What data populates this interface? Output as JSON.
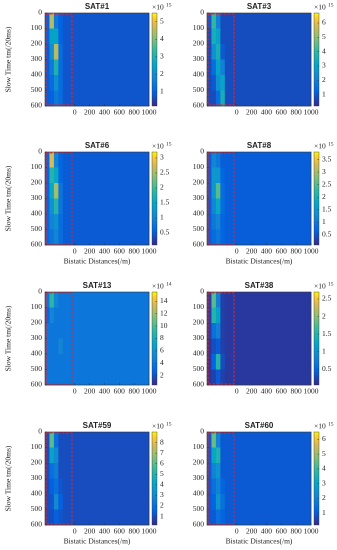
{
  "chart_data": [
    {
      "type": "heatmap",
      "title": "SAT#1",
      "ylabel": "Slow Time tm(/20ms)",
      "x_edges": [
        -400,
        -340,
        -280,
        -220,
        -160,
        1000
      ],
      "y_edges": [
        0,
        100,
        200,
        300,
        400,
        500,
        600
      ],
      "z": [
        [
          1,
          4.5,
          1.5,
          1,
          0.8
        ],
        [
          1,
          2.5,
          2.5,
          1,
          0.8
        ],
        [
          0.9,
          2,
          4.5,
          1.2,
          0.8
        ],
        [
          0.9,
          1.5,
          3,
          1.2,
          0.8
        ],
        [
          0.9,
          1.2,
          2,
          1.2,
          0.8
        ],
        [
          0.9,
          1,
          1.5,
          1.2,
          0.8
        ]
      ],
      "xlim": [
        -400,
        1000
      ],
      "ylim": [
        0,
        600
      ],
      "xticks": [
        0,
        200,
        400,
        600,
        800,
        1000
      ],
      "yticks": [
        0,
        100,
        200,
        300,
        400,
        500,
        600
      ],
      "clim": [
        0.2,
        5.5
      ],
      "cticks": [
        1,
        2,
        3,
        4,
        5
      ],
      "cexponent": {
        "base": "×10",
        "power": "15"
      }
    },
    {
      "type": "heatmap",
      "title": "SAT#3",
      "x_edges": [
        -400,
        -340,
        -280,
        -220,
        -160,
        1000
      ],
      "y_edges": [
        0,
        100,
        200,
        300,
        400,
        500,
        600
      ],
      "z": [
        [
          1,
          4,
          2,
          0.8,
          0.8
        ],
        [
          0.8,
          3.5,
          3,
          0.8,
          0.8
        ],
        [
          0.8,
          2.5,
          3.5,
          1,
          0.8
        ],
        [
          0.8,
          1.5,
          3,
          2,
          0.8
        ],
        [
          0.8,
          1,
          2.5,
          3,
          0.8
        ],
        [
          0.8,
          0.8,
          1.5,
          3.5,
          0.8
        ]
      ],
      "xlim": [
        -400,
        1000
      ],
      "ylim": [
        0,
        600
      ],
      "xticks": [
        0,
        200,
        400,
        600,
        800,
        1000
      ],
      "yticks": [
        0,
        100,
        200,
        300,
        400,
        500,
        600
      ],
      "clim": [
        0.2,
        6.7
      ],
      "cticks": [
        1,
        2,
        3,
        4,
        5,
        6
      ],
      "cexponent": {
        "base": "×10",
        "power": "15"
      }
    },
    {
      "type": "heatmap",
      "title": "SAT#6",
      "ylabel": "Slow Time tm(/20ms)",
      "xlabel": "Bistatic Distances(/m)",
      "x_edges": [
        -400,
        -340,
        -280,
        -220,
        -160,
        1000
      ],
      "y_edges": [
        0,
        100,
        200,
        300,
        400,
        500,
        600
      ],
      "z": [
        [
          0.6,
          2.8,
          1,
          0.6,
          0.5
        ],
        [
          0.6,
          1.8,
          1.5,
          0.6,
          0.5
        ],
        [
          0.6,
          1.5,
          2.5,
          0.8,
          0.5
        ],
        [
          0.6,
          1.2,
          1.8,
          0.8,
          0.5
        ],
        [
          0.6,
          1,
          1.2,
          0.7,
          0.5
        ],
        [
          0.6,
          0.8,
          1,
          0.7,
          0.5
        ]
      ],
      "xlim": [
        -400,
        1000
      ],
      "ylim": [
        0,
        600
      ],
      "xticks": [
        0,
        200,
        400,
        600,
        800,
        1000
      ],
      "yticks": [
        0,
        100,
        200,
        300,
        400,
        500,
        600
      ],
      "clim": [
        0.1,
        3.2
      ],
      "cticks": [
        0.5,
        1,
        1.5,
        2,
        2.5,
        3
      ],
      "cexponent": {
        "base": "×10",
        "power": "15"
      }
    },
    {
      "type": "heatmap",
      "title": "SAT#8",
      "xlabel": "Bistatic Distances(/m)",
      "x_edges": [
        -400,
        -340,
        -280,
        -220,
        -160,
        1000
      ],
      "y_edges": [
        0,
        100,
        200,
        300,
        400,
        500,
        600
      ],
      "z": [
        [
          0.6,
          1.2,
          1,
          0.6,
          0.6
        ],
        [
          0.6,
          1.5,
          1.5,
          0.7,
          0.6
        ],
        [
          0.6,
          1.5,
          2.5,
          0.8,
          0.6
        ],
        [
          0.6,
          1.2,
          1.8,
          0.8,
          0.6
        ],
        [
          0.6,
          1,
          1.2,
          0.7,
          0.6
        ],
        [
          0.6,
          0.8,
          1,
          0.7,
          0.6
        ]
      ],
      "xlim": [
        -400,
        1000
      ],
      "ylim": [
        0,
        600
      ],
      "xticks": [
        0,
        200,
        400,
        600,
        800,
        1000
      ],
      "yticks": [
        0,
        100,
        200,
        300,
        400,
        500,
        600
      ],
      "clim": [
        0.1,
        3.8
      ],
      "cticks": [
        0.5,
        1,
        1.5,
        2,
        2.5,
        3,
        3.5
      ],
      "cexponent": {
        "base": "×10",
        "power": "15"
      }
    },
    {
      "type": "heatmap",
      "title": "SAT#13",
      "ylabel": "Slow Time tm(/20ms)",
      "x_edges": [
        -400,
        -340,
        -280,
        -220,
        -160,
        1000
      ],
      "y_edges": [
        0,
        100,
        200,
        300,
        400,
        500,
        600
      ],
      "z": [
        [
          4,
          9,
          5,
          4,
          4
        ],
        [
          3,
          5,
          4,
          4,
          4
        ],
        [
          4,
          4,
          4,
          4,
          4
        ],
        [
          4,
          4,
          4,
          5,
          4
        ],
        [
          4,
          4,
          4,
          4,
          4
        ],
        [
          4,
          4,
          4,
          4,
          4
        ]
      ],
      "xlim": [
        -400,
        1000
      ],
      "ylim": [
        0,
        600
      ],
      "xticks": [
        0,
        200,
        400,
        600,
        800,
        1000
      ],
      "yticks": [
        0,
        100,
        200,
        300,
        400,
        500,
        600
      ],
      "clim": [
        0.5,
        15.5
      ],
      "cticks": [
        2,
        4,
        6,
        8,
        10,
        12,
        14
      ],
      "cexponent": {
        "base": "×10",
        "power": "14"
      }
    },
    {
      "type": "heatmap",
      "title": "SAT#38",
      "x_edges": [
        -400,
        -340,
        -280,
        -220,
        -160,
        1000
      ],
      "y_edges": [
        0,
        100,
        200,
        300,
        400,
        500,
        600
      ],
      "z": [
        [
          0.2,
          1.8,
          0.8,
          0.2,
          0.15
        ],
        [
          0.2,
          1.5,
          1.2,
          0.2,
          0.15
        ],
        [
          0.2,
          0.6,
          0.8,
          0.2,
          0.15
        ],
        [
          0.15,
          0.3,
          0.4,
          0.2,
          0.15
        ],
        [
          0.15,
          0.5,
          1.5,
          0.3,
          0.15
        ],
        [
          0.15,
          0.2,
          0.4,
          0.2,
          0.15
        ]
      ],
      "xlim": [
        -400,
        1000
      ],
      "ylim": [
        0,
        600
      ],
      "xticks": [
        0,
        200,
        400,
        600,
        800,
        1000
      ],
      "yticks": [
        0,
        100,
        200,
        300,
        400,
        500,
        600
      ],
      "clim": [
        0.05,
        2.7
      ],
      "cticks": [
        0.5,
        1,
        1.5,
        2,
        2.5
      ],
      "cexponent": {
        "base": "×10",
        "power": "15"
      }
    },
    {
      "type": "heatmap",
      "title": "SAT#59",
      "ylabel": "Slow Time tm(/20ms)",
      "xlabel": "Bistatic Distances(/m)",
      "x_edges": [
        -400,
        -340,
        -280,
        -220,
        -160,
        1000
      ],
      "y_edges": [
        0,
        100,
        200,
        300,
        400,
        500,
        600
      ],
      "z": [
        [
          1,
          6,
          2,
          1,
          1
        ],
        [
          1,
          4,
          3,
          1,
          1
        ],
        [
          1,
          2,
          2.5,
          1,
          1
        ],
        [
          1,
          1.5,
          2,
          1.2,
          1
        ],
        [
          1,
          1.2,
          3,
          1.5,
          1
        ],
        [
          1,
          1,
          1.5,
          1.2,
          1
        ]
      ],
      "xlim": [
        -400,
        1000
      ],
      "ylim": [
        0,
        600
      ],
      "xticks": [
        0,
        200,
        400,
        600,
        800,
        1000
      ],
      "yticks": [
        0,
        100,
        200,
        300,
        400,
        500,
        600
      ],
      "clim": [
        0.2,
        9
      ],
      "cticks": [
        1,
        2,
        3,
        4,
        5,
        6,
        7,
        8
      ],
      "cexponent": {
        "base": "×10",
        "power": "15"
      }
    },
    {
      "type": "heatmap",
      "title": "SAT#60",
      "xlabel": "Bistatic Distances(/m)",
      "x_edges": [
        -400,
        -340,
        -280,
        -220,
        -160,
        1000
      ],
      "y_edges": [
        0,
        100,
        200,
        300,
        400,
        500,
        600
      ],
      "z": [
        [
          1,
          4.5,
          2,
          1,
          1
        ],
        [
          1,
          3,
          3.5,
          1,
          1
        ],
        [
          1,
          2,
          2.5,
          1,
          1
        ],
        [
          1,
          1.5,
          2,
          1.2,
          1
        ],
        [
          1,
          1.2,
          2.5,
          1.5,
          1
        ],
        [
          1,
          1,
          1.5,
          1.2,
          1
        ]
      ],
      "xlim": [
        -400,
        1000
      ],
      "ylim": [
        0,
        600
      ],
      "xticks": [
        0,
        200,
        400,
        600,
        800,
        1000
      ],
      "yticks": [
        0,
        100,
        200,
        300,
        400,
        500,
        600
      ],
      "clim": [
        0.2,
        6.5
      ],
      "cticks": [
        1,
        2,
        3,
        4,
        5,
        6
      ],
      "cexponent": {
        "base": "×10",
        "power": "15"
      }
    }
  ]
}
